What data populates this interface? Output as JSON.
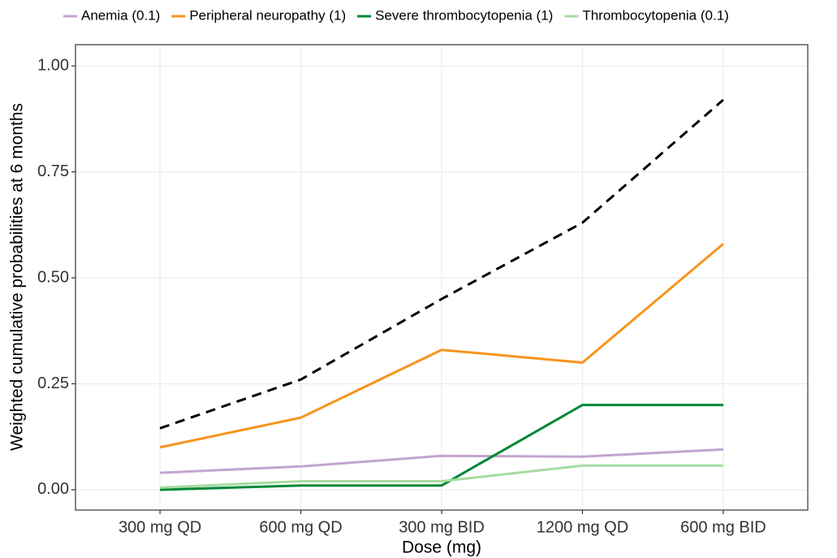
{
  "chart_data": {
    "type": "line",
    "x_label": "Dose (mg)",
    "y_label": "Weighted cumulative probabilities at 6 months",
    "categories": [
      "300 mg QD",
      "600 mg QD",
      "300 mg BID",
      "1200 mg QD",
      "600 mg BID"
    ],
    "series": [
      {
        "name": "Anemia (0.1)",
        "color": "#c2a5cf",
        "values": [
          0.04,
          0.055,
          0.08,
          0.078,
          0.095
        ]
      },
      {
        "name": "Peripheral neuropathy (1)",
        "color": "#f7941d",
        "values": [
          0.1,
          0.17,
          0.33,
          0.3,
          0.58
        ]
      },
      {
        "name": "Severe thrombocytopenia (1)",
        "color": "#008837",
        "values": [
          0.0,
          0.01,
          0.01,
          0.2,
          0.2
        ]
      },
      {
        "name": "Thrombocytopenia (0.1)",
        "color": "#a6dba0",
        "values": [
          0.005,
          0.02,
          0.02,
          0.057,
          0.057
        ]
      },
      {
        "color": "#000000",
        "dashed": true,
        "values": [
          0.145,
          0.26,
          0.45,
          0.63,
          0.92
        ]
      }
    ],
    "ylim": [
      -0.048,
      1.05
    ],
    "yticks": [
      {
        "value": 0,
        "label": "0.00"
      },
      {
        "value": 0.25,
        "label": "0.25"
      },
      {
        "value": 0.5,
        "label": "0.50"
      },
      {
        "value": 0.75,
        "label": "0.75"
      },
      {
        "value": 1,
        "label": "1.00"
      }
    ],
    "grid": true,
    "legend_position": "top"
  }
}
